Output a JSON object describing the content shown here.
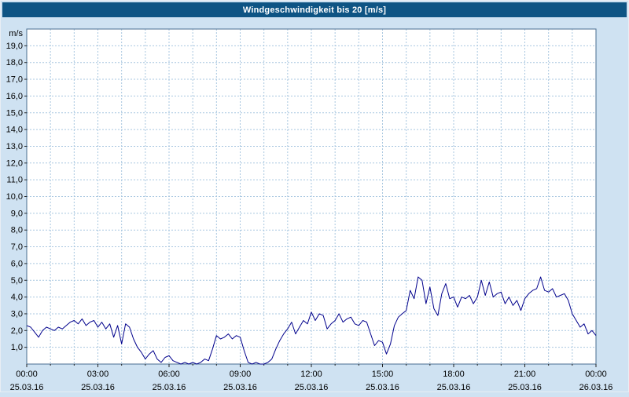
{
  "title": "Windgeschwindigkeit bis 20 [m/s]",
  "colors": {
    "title_bar_bg": "#0e5484",
    "title_text": "#ffffff",
    "page_bg": "#cfe2f2",
    "plot_bg": "#ffffff",
    "grid": "#a9c7e0",
    "plot_border": "#4a6e90",
    "axis_tick": "#222222",
    "label_text": "#000000",
    "series_line": "#00008c"
  },
  "chart_data": {
    "type": "line",
    "title": "Windgeschwindigkeit bis 20 [m/s]",
    "y_unit_label": "m/s",
    "ylim": [
      0,
      20
    ],
    "ytick_step": 1,
    "ytick_labels": [
      "1,0",
      "2,0",
      "3,0",
      "4,0",
      "5,0",
      "6,0",
      "7,0",
      "8,0",
      "9,0",
      "10,0",
      "11,0",
      "12,0",
      "13,0",
      "14,0",
      "15,0",
      "16,0",
      "17,0",
      "18,0",
      "19,0"
    ],
    "x_hours_range": [
      0,
      24
    ],
    "x_minor_grid_hours": 1,
    "xticks": [
      {
        "label": "00:00",
        "date": "25.03.16",
        "hour": 0
      },
      {
        "label": "03:00",
        "date": "25.03.16",
        "hour": 3
      },
      {
        "label": "06:00",
        "date": "25.03.16",
        "hour": 6
      },
      {
        "label": "09:00",
        "date": "25.03.16",
        "hour": 9
      },
      {
        "label": "12:00",
        "date": "25.03.16",
        "hour": 12
      },
      {
        "label": "15:00",
        "date": "25.03.16",
        "hour": 15
      },
      {
        "label": "18:00",
        "date": "25.03.16",
        "hour": 18
      },
      {
        "label": "21:00",
        "date": "25.03.16",
        "hour": 21
      },
      {
        "label": "00:00",
        "date": "26.03.16",
        "hour": 24
      }
    ],
    "grid": true,
    "legend": "none",
    "series": [
      {
        "name": "Windgeschwindigkeit",
        "color": "#00008c",
        "x_start_hour": 0,
        "x_interval_minutes": 10,
        "values": [
          2.3,
          2.2,
          1.9,
          1.6,
          2.0,
          2.2,
          2.1,
          2.0,
          2.2,
          2.1,
          2.3,
          2.5,
          2.6,
          2.4,
          2.7,
          2.3,
          2.5,
          2.6,
          2.2,
          2.5,
          2.1,
          2.4,
          1.6,
          2.3,
          1.2,
          2.4,
          2.2,
          1.5,
          1.0,
          0.7,
          0.3,
          0.6,
          0.8,
          0.3,
          0.1,
          0.4,
          0.5,
          0.2,
          0.1,
          0.0,
          0.1,
          0.0,
          0.1,
          0.0,
          0.1,
          0.3,
          0.2,
          0.9,
          1.7,
          1.5,
          1.6,
          1.8,
          1.5,
          1.7,
          1.6,
          0.8,
          0.1,
          0.0,
          0.1,
          0.0,
          0.0,
          0.1,
          0.3,
          0.9,
          1.4,
          1.8,
          2.1,
          2.5,
          1.8,
          2.2,
          2.6,
          2.4,
          3.1,
          2.6,
          3.0,
          2.9,
          2.1,
          2.4,
          2.6,
          3.0,
          2.5,
          2.7,
          2.8,
          2.4,
          2.3,
          2.6,
          2.5,
          1.8,
          1.1,
          1.4,
          1.3,
          0.6,
          1.2,
          2.3,
          2.8,
          3.0,
          3.2,
          4.4,
          3.9,
          5.2,
          5.0,
          3.6,
          4.6,
          3.3,
          2.9,
          4.2,
          4.8,
          3.9,
          4.0,
          3.4,
          4.0,
          3.9,
          4.1,
          3.6,
          4.0,
          5.0,
          4.1,
          4.9,
          4.0,
          4.2,
          4.3,
          3.6,
          4.0,
          3.5,
          3.8,
          3.2,
          3.9,
          4.2,
          4.4,
          4.5,
          5.2,
          4.4,
          4.3,
          4.5,
          4.0,
          4.1,
          4.2,
          3.8,
          3.0,
          2.6,
          2.2,
          2.4,
          1.8,
          2.0,
          1.7
        ]
      }
    ]
  }
}
